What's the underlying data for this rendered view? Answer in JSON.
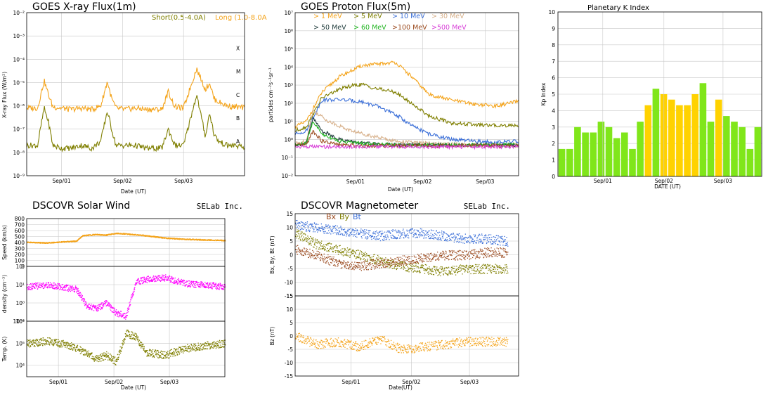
{
  "colors": {
    "olive": "#7f7f00",
    "orange": "#f4a41c",
    "blue": "#3b6fd8",
    "tan": "#d7b08a",
    "darkslate": "#1f3b3b",
    "green": "#22b522",
    "brown": "#9b4a1e",
    "magenta": "#d840d8",
    "kp_green": "#80e61a",
    "kp_yellow": "#ffd200",
    "pink": "#ff00ff",
    "grid": "#c8c8c8"
  },
  "chart_data": [
    {
      "id": "xray",
      "type": "line",
      "title": "GOES X-ray Flux(1m)",
      "xlabel": "Date (UT)",
      "ylabel": "X-ray Flux (W/m²)",
      "yscale": "log",
      "ylim": [
        1e-09,
        0.01
      ],
      "yticks": [
        "10⁻⁹",
        "10⁻⁸",
        "10⁻⁷",
        "10⁻⁶",
        "10⁻⁵",
        "10⁻⁴",
        "10⁻³",
        "10⁻²"
      ],
      "xticks": [
        "Sep/01",
        "Sep/02",
        "Sep/03"
      ],
      "flare_classes": [
        "A",
        "B",
        "C",
        "M",
        "X"
      ],
      "legend": [
        {
          "name": "Short(0.5-4.0A)",
          "color": "#7f7f00"
        },
        {
          "name": "Long (1.0-8.0A)",
          "color": "#f4a41c"
        }
      ],
      "series": [
        {
          "name": "Long (1.0-8.0A)",
          "color": "#f4a41c",
          "x": [
            0.0,
            0.05,
            0.08,
            0.1,
            0.12,
            0.16,
            0.2,
            0.25,
            0.3,
            0.34,
            0.37,
            0.39,
            0.41,
            0.45,
            0.5,
            0.55,
            0.62,
            0.65,
            0.68,
            0.72,
            0.78,
            0.82,
            0.84,
            0.86,
            0.88,
            0.92,
            0.96,
            1.0
          ],
          "y": [
            8e-07,
            8e-07,
            1.2e-05,
            3e-06,
            9e-07,
            8e-07,
            7e-07,
            8e-07,
            7e-07,
            1e-06,
            1.1e-05,
            2e-06,
            8e-07,
            7e-07,
            8e-07,
            7e-07,
            7e-07,
            4e-06,
            9e-07,
            8e-07,
            4e-05,
            5e-06,
            1e-05,
            2e-06,
            1.5e-06,
            1e-06,
            9e-07,
            8e-07
          ]
        },
        {
          "name": "Short(0.5-4.0A)",
          "color": "#7f7f00",
          "x": [
            0.0,
            0.05,
            0.08,
            0.1,
            0.12,
            0.16,
            0.2,
            0.25,
            0.3,
            0.34,
            0.37,
            0.39,
            0.41,
            0.45,
            0.5,
            0.55,
            0.62,
            0.65,
            0.68,
            0.72,
            0.78,
            0.82,
            0.84,
            0.86,
            0.88,
            0.92,
            0.96,
            1.0
          ],
          "y": [
            2e-08,
            2e-08,
            8e-07,
            2e-07,
            2e-08,
            1.5e-08,
            1.5e-08,
            2e-08,
            1.5e-08,
            3e-08,
            6e-07,
            1e-07,
            2e-08,
            2e-08,
            2e-08,
            1.5e-08,
            1.5e-08,
            1e-07,
            2e-08,
            2e-08,
            3e-06,
            5e-08,
            5e-07,
            6e-08,
            3e-08,
            2e-08,
            2e-08,
            1.5e-08
          ]
        }
      ]
    },
    {
      "id": "proton",
      "type": "line",
      "title": "GOES Proton Flux(5m)",
      "xlabel": "Date (UT)",
      "ylabel": "particles cm⁻²s⁻¹sr⁻¹",
      "yscale": "log",
      "ylim": [
        0.01,
        10000000.0
      ],
      "yticks": [
        "10⁻²",
        "10⁻¹",
        "10⁰",
        "10¹",
        "10²",
        "10³",
        "10⁴",
        "10⁵",
        "10⁶",
        "10⁷"
      ],
      "xticks": [
        "Sep/01",
        "Sep/02",
        "Sep/03"
      ],
      "legend": [
        {
          "name": "> 1 MeV",
          "color": "#f4a41c"
        },
        {
          "name": "> 5 MeV",
          "color": "#7f7f00"
        },
        {
          "name": "> 10 MeV",
          "color": "#3b6fd8"
        },
        {
          "name": "> 30 MeV",
          "color": "#d7b08a"
        },
        {
          "name": "> 50 MeV",
          "color": "#1f3b3b"
        },
        {
          "name": "> 60 MeV",
          "color": "#22b522"
        },
        {
          "name": ">100 MeV",
          "color": "#9b4a1e"
        },
        {
          "name": ">500 MeV",
          "color": "#d840d8"
        }
      ],
      "series": [
        {
          "name": "> 1 MeV",
          "color": "#f4a41c",
          "x": [
            0,
            0.05,
            0.12,
            0.2,
            0.3,
            0.38,
            0.45,
            0.52,
            0.6,
            0.7,
            0.8,
            0.9,
            1.0
          ],
          "y": [
            5,
            10,
            400,
            3000,
            12000,
            15000,
            18000,
            3000,
            300,
            150,
            90,
            70,
            130
          ]
        },
        {
          "name": "> 5 MeV",
          "color": "#7f7f00",
          "x": [
            0,
            0.05,
            0.12,
            0.2,
            0.25,
            0.3,
            0.35,
            0.45,
            0.52,
            0.6,
            0.7,
            0.85,
            1.0
          ],
          "y": [
            3,
            5,
            200,
            600,
            900,
            1100,
            700,
            400,
            100,
            20,
            8,
            6,
            6
          ]
        },
        {
          "name": "> 10 MeV",
          "color": "#3b6fd8",
          "x": [
            0,
            0.05,
            0.12,
            0.2,
            0.3,
            0.38,
            0.46,
            0.52,
            0.6,
            0.7,
            0.8,
            0.9,
            1.0
          ],
          "y": [
            2,
            3,
            150,
            160,
            120,
            60,
            20,
            6,
            2,
            1,
            0.8,
            0.7,
            0.8
          ]
        },
        {
          "name": "> 30 MeV",
          "color": "#d7b08a",
          "x": [
            0,
            0.05,
            0.08,
            0.15,
            0.25,
            0.35,
            0.45,
            0.6,
            0.8,
            1.0
          ],
          "y": [
            0.6,
            0.8,
            40,
            10,
            3,
            1.5,
            0.8,
            0.6,
            0.5,
            0.5
          ]
        },
        {
          "name": "> 50 MeV",
          "color": "#1f3b3b",
          "x": [
            0,
            0.05,
            0.08,
            0.12,
            0.2,
            0.3,
            0.45,
            0.6,
            0.8,
            1.0
          ],
          "y": [
            0.5,
            0.6,
            15,
            3,
            1,
            0.6,
            0.5,
            0.5,
            0.5,
            0.5
          ]
        },
        {
          "name": "> 60 MeV",
          "color": "#22b522",
          "x": [
            0,
            0.05,
            0.08,
            0.12,
            0.2,
            0.3,
            0.45,
            0.6,
            0.8,
            1.0
          ],
          "y": [
            0.5,
            0.6,
            10,
            2,
            0.8,
            0.6,
            0.5,
            0.5,
            0.5,
            0.5
          ]
        },
        {
          "name": ">100 MeV",
          "color": "#9b4a1e",
          "x": [
            0,
            0.05,
            0.08,
            0.12,
            0.2,
            0.3,
            0.45,
            0.6,
            0.8,
            1.0
          ],
          "y": [
            0.45,
            0.5,
            3,
            0.8,
            0.5,
            0.45,
            0.45,
            0.45,
            0.45,
            0.45
          ]
        },
        {
          "name": ">500 MeV",
          "color": "#d840d8",
          "x": [
            0,
            0.2,
            0.4,
            0.6,
            0.8,
            1.0
          ],
          "y": [
            0.4,
            0.4,
            0.4,
            0.4,
            0.4,
            0.4
          ]
        }
      ]
    },
    {
      "id": "kp",
      "type": "bar",
      "title": "Planetary K Index",
      "xlabel": "DATE (UT)",
      "ylabel": "Kp Index",
      "ylim": [
        0,
        10
      ],
      "yticks": [
        "0",
        "1",
        "2",
        "3",
        "4",
        "5",
        "6",
        "7",
        "8",
        "9",
        "10"
      ],
      "xticks": [
        "Sep/01",
        "Sep/02",
        "Sep/03"
      ],
      "values": [
        1.67,
        1.67,
        3.0,
        2.67,
        2.67,
        3.33,
        3.0,
        2.33,
        2.67,
        1.67,
        3.33,
        4.33,
        5.33,
        5.0,
        4.67,
        4.33,
        4.33,
        5.0,
        5.67,
        3.33,
        4.67,
        3.67,
        3.33,
        3.0,
        1.67,
        3.0
      ],
      "bar_colors": [
        "g",
        "g",
        "g",
        "g",
        "g",
        "g",
        "g",
        "g",
        "g",
        "g",
        "g",
        "y",
        "g",
        "y",
        "y",
        "y",
        "y",
        "y",
        "g",
        "g",
        "y",
        "g",
        "g",
        "g",
        "g",
        "g"
      ]
    },
    {
      "id": "wind",
      "type": "scatter",
      "title": "DSCOVR Solar Wind",
      "brand": "SELab Inc.",
      "xlabel": "Date (UT)",
      "xticks": [
        "Sep/01",
        "Sep/02",
        "Sep/03"
      ],
      "subplots": [
        {
          "ylabel": "Speed (km/s)",
          "ylim": [
            0,
            800
          ],
          "yticks": [
            "0",
            "100",
            "200",
            "300",
            "400",
            "500",
            "600",
            "700",
            "800"
          ],
          "color": "#f4a41c",
          "x": [
            0,
            0.1,
            0.2,
            0.25,
            0.28,
            0.35,
            0.4,
            0.45,
            0.5,
            0.6,
            0.7,
            0.8,
            0.9,
            1.0
          ],
          "y": [
            410,
            400,
            420,
            430,
            520,
            540,
            530,
            560,
            550,
            520,
            480,
            460,
            450,
            440
          ]
        },
        {
          "ylabel": "density (cm⁻³)",
          "yscale": "log",
          "ylim": [
            0.1,
            100
          ],
          "yticks": [
            "10⁻¹",
            "10⁰",
            "10¹",
            "10²"
          ],
          "color": "#ff00ff",
          "x": [
            0,
            0.1,
            0.2,
            0.25,
            0.3,
            0.35,
            0.4,
            0.45,
            0.5,
            0.55,
            0.6,
            0.7,
            0.8,
            0.9,
            1.0
          ],
          "y": [
            8,
            10,
            7,
            6,
            0.8,
            0.5,
            1,
            0.3,
            0.2,
            15,
            20,
            25,
            12,
            10,
            8
          ]
        },
        {
          "ylabel": "Temp. (K)",
          "yscale": "log",
          "ylim": [
            3000,
            1000000
          ],
          "yticks": [
            "10⁴",
            "10⁵",
            "10⁶"
          ],
          "color": "#7f7f00",
          "x": [
            0,
            0.1,
            0.2,
            0.25,
            0.3,
            0.35,
            0.4,
            0.45,
            0.5,
            0.55,
            0.6,
            0.7,
            0.8,
            0.9,
            1.0
          ],
          "y": [
            100000,
            130000,
            90000,
            60000,
            40000,
            20000,
            30000,
            15000,
            300000,
            200000,
            40000,
            30000,
            60000,
            80000,
            100000
          ]
        }
      ]
    },
    {
      "id": "mag",
      "type": "scatter",
      "title": "DSCOVR Magnetometer",
      "brand": "SELab Inc.",
      "xlabel": "Date(UT)",
      "xticks": [
        "Sep/01",
        "Sep/02",
        "Sep/03"
      ],
      "legend": [
        {
          "name": "Bx",
          "color": "#9b4a1e"
        },
        {
          "name": "By",
          "color": "#7f7f00"
        },
        {
          "name": "Bt",
          "color": "#3b6fd8"
        }
      ],
      "subplots": [
        {
          "ylabel": "Bx, By, Bt (nT)",
          "ylim": [
            -15,
            15
          ],
          "yticks": [
            "-15",
            "-10",
            "-5",
            "0",
            "5",
            "10",
            "15"
          ],
          "series": [
            {
              "name": "Bt",
              "color": "#3b6fd8",
              "x": [
                0,
                0.1,
                0.2,
                0.3,
                0.4,
                0.5,
                0.6,
                0.7,
                0.8,
                0.9,
                1.0
              ],
              "y": [
                11,
                10,
                9,
                8,
                7,
                8,
                8,
                7,
                6,
                6,
                5
              ]
            },
            {
              "name": "By",
              "color": "#7f7f00",
              "x": [
                0,
                0.1,
                0.2,
                0.3,
                0.4,
                0.5,
                0.6,
                0.7,
                0.8,
                0.9,
                1.0
              ],
              "y": [
                8,
                4,
                2,
                0,
                -2,
                -4,
                -5,
                -6,
                -5,
                -5,
                -5
              ]
            },
            {
              "name": "Bx",
              "color": "#9b4a1e",
              "x": [
                0,
                0.1,
                0.2,
                0.3,
                0.4,
                0.5,
                0.6,
                0.7,
                0.8,
                0.9,
                1.0
              ],
              "y": [
                2,
                0,
                -3,
                -4,
                -3,
                -2,
                -1,
                0,
                0,
                1,
                1
              ]
            }
          ]
        },
        {
          "ylabel": "Bz (nT)",
          "ylim": [
            -15,
            15
          ],
          "yticks": [
            "-15",
            "-10",
            "-5",
            "0",
            "5",
            "10",
            "15"
          ],
          "series": [
            {
              "name": "Bz",
              "color": "#f4a41c",
              "x": [
                0,
                0.1,
                0.2,
                0.3,
                0.4,
                0.5,
                0.6,
                0.7,
                0.8,
                0.9,
                1.0
              ],
              "y": [
                0,
                -3,
                -2,
                -4,
                -1,
                -5,
                -4,
                -3,
                -2,
                -2,
                -2
              ]
            }
          ]
        }
      ]
    }
  ]
}
